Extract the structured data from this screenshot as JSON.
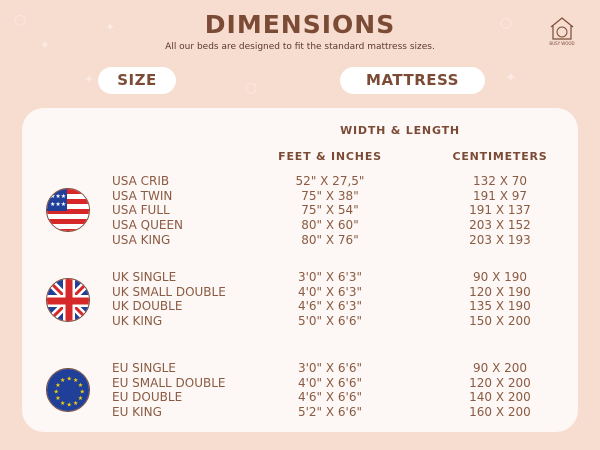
{
  "header": {
    "title": "DIMENSIONS",
    "subtitle": "All our beds are designed to fit the standard mattress sizes.",
    "logo_text": "BUSY WOOD"
  },
  "pills": {
    "size": "SIZE",
    "mattress": "MATTRESS"
  },
  "table": {
    "group_header": "WIDTH & LENGTH",
    "columns": [
      "FEET & INCHES",
      "CENTIMETERS"
    ],
    "groups": [
      {
        "flag": "usa-flag-icon",
        "rows": [
          {
            "name": "USA CRIB",
            "ft": "52\" X 27,5\"",
            "cm": "132 X 70"
          },
          {
            "name": "USA TWIN",
            "ft": "75\" X 38\"",
            "cm": "191 X 97"
          },
          {
            "name": "USA FULL",
            "ft": "75\" X 54\"",
            "cm": "191 X 137"
          },
          {
            "name": "USA QUEEN",
            "ft": "80\" X 60\"",
            "cm": "203 X 152"
          },
          {
            "name": "USA KING",
            "ft": "80\" X 76\"",
            "cm": "203 X 193"
          }
        ]
      },
      {
        "flag": "uk-flag-icon",
        "rows": [
          {
            "name": "UK SINGLE",
            "ft": "3'0\" X 6'3\"",
            "cm": "90 X 190"
          },
          {
            "name": "UK SMALL DOUBLE",
            "ft": "4'0\" X 6'3\"",
            "cm": "120 X 190"
          },
          {
            "name": "UK DOUBLE",
            "ft": "4'6\" X 6'3\"",
            "cm": "135 X 190"
          },
          {
            "name": "UK KING",
            "ft": "5'0\" X 6'6\"",
            "cm": "150 X 200"
          }
        ]
      },
      {
        "flag": "eu-flag-icon",
        "rows": [
          {
            "name": "EU SINGLE",
            "ft": "3'0\" X 6'6\"",
            "cm": "90 X 200"
          },
          {
            "name": "EU SMALL DOUBLE",
            "ft": "4'0\" X 6'6\"",
            "cm": "120 X 200"
          },
          {
            "name": "EU DOUBLE",
            "ft": "4'6\" X 6'6\"",
            "cm": "140 X 200"
          },
          {
            "name": "EU KING",
            "ft": "5'2\" X 6'6\"",
            "cm": "160 X 200"
          }
        ]
      }
    ]
  },
  "colors": {
    "background": "#f7dcd0",
    "card": "#fdf8f5",
    "text": "#7b4b36"
  }
}
